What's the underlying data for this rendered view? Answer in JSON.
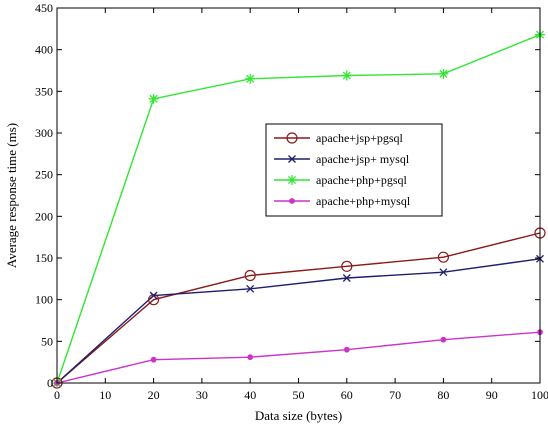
{
  "chart_data": {
    "type": "line",
    "title": "",
    "xlabel": "Data size (bytes)",
    "ylabel": "Average response time (ms)",
    "xlim": [
      0,
      100
    ],
    "ylim": [
      0,
      450
    ],
    "xticks": [
      0,
      10,
      20,
      30,
      40,
      50,
      60,
      70,
      80,
      90,
      100
    ],
    "yticks": [
      0,
      50,
      100,
      150,
      200,
      250,
      300,
      350,
      400,
      450
    ],
    "grid": false,
    "legend_position": "center-right",
    "series": [
      {
        "name": "apache+jsp+pgsql",
        "color": "#8b1a1a",
        "marker": "circle",
        "x": [
          0,
          20,
          40,
          60,
          80,
          100
        ],
        "values": [
          0,
          100,
          129,
          140,
          151,
          180
        ]
      },
      {
        "name": "apache+jsp+ mysql",
        "color": "#1f1f6e",
        "marker": "x",
        "x": [
          0,
          20,
          40,
          60,
          80,
          100
        ],
        "values": [
          0,
          105,
          113,
          126,
          133,
          149
        ]
      },
      {
        "name": "apache+php+pgsql",
        "color": "#33e633",
        "marker": "asterisk",
        "x": [
          0,
          20,
          40,
          60,
          80,
          100
        ],
        "values": [
          0,
          341,
          365,
          369,
          371,
          418
        ]
      },
      {
        "name": "apache+php+mysql",
        "color": "#cc33cc",
        "marker": "dot",
        "x": [
          0,
          20,
          40,
          60,
          80,
          100
        ],
        "values": [
          0,
          28,
          31,
          40,
          52,
          61
        ]
      }
    ]
  }
}
